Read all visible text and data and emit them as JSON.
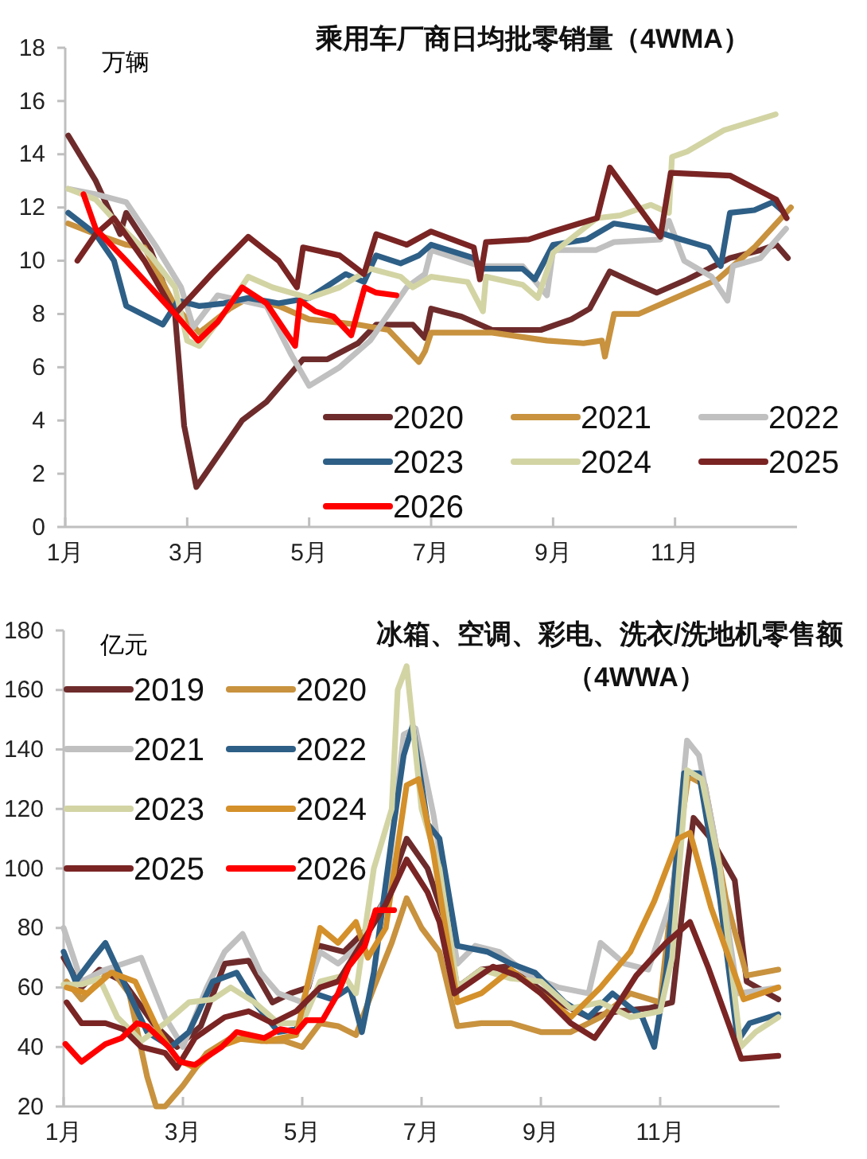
{
  "chart_data": [
    {
      "type": "line",
      "title": "乘用车厂商日均批零销量（4WMA）",
      "ylabel": "万辆",
      "xlim": [
        1,
        13
      ],
      "xticks": [
        {
          "value": 1,
          "label": "1月"
        },
        {
          "value": 3,
          "label": "3月"
        },
        {
          "value": 5,
          "label": "5月"
        },
        {
          "value": 7,
          "label": "7月"
        },
        {
          "value": 9,
          "label": "9月"
        },
        {
          "value": 11,
          "label": "11月"
        }
      ],
      "ylim": [
        0,
        18
      ],
      "yticks": [
        0,
        2,
        4,
        6,
        8,
        10,
        12,
        14,
        16,
        18
      ],
      "grid": false,
      "legend": "bottom right",
      "marker": "none",
      "line_style": "solid",
      "series": [
        {
          "name": "2020",
          "color": "#6e2b2b",
          "x": [
            1.05,
            1.5,
            1.9,
            2.0,
            2.4,
            2.8,
            2.95,
            3.15,
            3.3,
            3.6,
            3.9,
            4.3,
            4.6,
            4.9,
            5.3,
            5.8,
            6.1,
            6.7,
            6.9,
            7.0,
            7.5,
            8.0,
            8.8,
            9.3,
            9.6,
            9.93,
            10.3,
            10.7,
            11.2,
            11.9,
            12.4,
            12.66,
            12.85
          ],
          "values": [
            14.7,
            13.0,
            11.0,
            11.8,
            10.4,
            8.0,
            3.8,
            1.5,
            2.0,
            3.0,
            4.0,
            4.7,
            5.5,
            6.3,
            6.3,
            6.9,
            7.6,
            7.6,
            7.1,
            8.2,
            7.9,
            7.4,
            7.4,
            7.8,
            8.2,
            9.6,
            9.2,
            8.8,
            9.3,
            10.1,
            10.4,
            10.6,
            10.1
          ]
        },
        {
          "name": "2021",
          "color": "#c8923e",
          "x": [
            1.05,
            1.5,
            2.0,
            2.3,
            2.8,
            3.2,
            3.7,
            4.0,
            4.5,
            5.0,
            5.8,
            6.3,
            6.8,
            6.9,
            7.0,
            8.0,
            8.9,
            9.5,
            9.8,
            9.85,
            10.0,
            10.4,
            11.0,
            11.7,
            12.3,
            12.9
          ],
          "values": [
            11.4,
            11.0,
            10.6,
            10.5,
            8.3,
            7.3,
            8.2,
            8.6,
            8.3,
            7.8,
            7.6,
            7.4,
            6.2,
            6.6,
            7.3,
            7.3,
            7.0,
            6.9,
            7.0,
            6.4,
            8.0,
            8.0,
            8.6,
            9.3,
            10.5,
            12.0
          ]
        },
        {
          "name": "2022",
          "color": "#c0c0c0",
          "x": [
            1.05,
            1.5,
            2.0,
            2.5,
            2.9,
            3.1,
            3.5,
            4.3,
            4.7,
            5.0,
            5.5,
            6.0,
            6.3,
            6.6,
            6.9,
            7.0,
            7.8,
            8.5,
            8.9,
            9.0,
            9.7,
            10.0,
            10.76,
            10.9,
            11.15,
            11.6,
            11.86,
            11.95,
            12.4,
            12.82
          ],
          "values": [
            12.7,
            12.5,
            12.2,
            10.5,
            9.0,
            7.5,
            8.7,
            8.3,
            6.5,
            5.3,
            6.0,
            7.0,
            8.0,
            9.0,
            9.5,
            10.4,
            9.8,
            9.8,
            8.7,
            10.4,
            10.4,
            10.7,
            10.8,
            11.5,
            10.0,
            9.4,
            8.5,
            9.8,
            10.1,
            11.2
          ]
        },
        {
          "name": "2023",
          "color": "#2e5f86",
          "x": [
            1.05,
            1.5,
            1.8,
            2.0,
            2.6,
            2.85,
            3.2,
            3.6,
            4.0,
            4.5,
            5.0,
            5.6,
            5.9,
            6.1,
            6.5,
            6.8,
            7.0,
            7.7,
            7.85,
            8.5,
            8.7,
            9.0,
            9.55,
            10.0,
            10.55,
            11.1,
            11.55,
            11.75,
            11.9,
            12.3,
            12.6,
            12.75
          ],
          "values": [
            11.8,
            11.0,
            10.0,
            8.3,
            7.6,
            8.5,
            8.3,
            8.4,
            8.6,
            8.4,
            8.6,
            9.5,
            9.2,
            10.2,
            9.9,
            10.2,
            10.6,
            10.1,
            9.7,
            9.7,
            9.3,
            10.6,
            10.8,
            11.4,
            11.2,
            10.8,
            10.5,
            9.8,
            11.8,
            11.9,
            12.2,
            11.9
          ]
        },
        {
          "name": "2024",
          "color": "#d3d4a4",
          "x": [
            1.05,
            1.5,
            1.9,
            2.4,
            2.8,
            3.0,
            3.2,
            3.6,
            4.0,
            4.4,
            5.0,
            5.5,
            6.0,
            6.5,
            6.7,
            7.0,
            7.6,
            7.85,
            7.9,
            8.5,
            8.75,
            9.0,
            9.72,
            10.1,
            10.6,
            10.9,
            10.95,
            11.2,
            11.8,
            12.65
          ],
          "values": [
            12.7,
            12.3,
            11.3,
            10.2,
            9.0,
            7.0,
            6.8,
            8.0,
            9.4,
            9.0,
            8.6,
            9.0,
            9.7,
            9.4,
            9.0,
            9.4,
            9.2,
            8.1,
            9.4,
            9.1,
            8.6,
            10.3,
            11.6,
            11.7,
            12.1,
            11.8,
            13.9,
            14.1,
            14.9,
            15.5
          ]
        },
        {
          "name": "2025",
          "color": "#7a2424",
          "x": [
            1.2,
            1.5,
            1.8,
            2.3,
            2.8,
            3.4,
            4.0,
            4.5,
            4.8,
            4.9,
            5.5,
            5.9,
            6.1,
            6.6,
            7.0,
            7.7,
            7.8,
            7.9,
            8.6,
            9.0,
            9.72,
            9.93,
            10.76,
            10.93,
            11.9,
            12.66,
            12.83
          ],
          "values": [
            10.0,
            11.0,
            11.6,
            10.0,
            8.0,
            9.5,
            10.9,
            10.0,
            9.0,
            10.5,
            10.2,
            9.5,
            11.0,
            10.6,
            11.1,
            10.5,
            9.3,
            10.7,
            10.8,
            11.1,
            11.6,
            13.5,
            10.9,
            13.3,
            13.2,
            12.3,
            11.6
          ]
        },
        {
          "name": "2026",
          "color": "#ff0000",
          "x": [
            1.3,
            1.5,
            2.0,
            2.8,
            3.18,
            3.5,
            3.9,
            4.3,
            4.77,
            4.85,
            5.1,
            5.4,
            5.69,
            5.91,
            6.1,
            6.43
          ],
          "values": [
            12.5,
            11.2,
            10.0,
            8.0,
            7.0,
            7.7,
            9.0,
            8.4,
            6.8,
            8.5,
            8.1,
            7.9,
            7.2,
            9.0,
            8.8,
            8.7
          ]
        }
      ]
    },
    {
      "type": "line",
      "title": "冰箱、空调、彩电、洗衣/洗地机零售额（4WWA）",
      "ylabel": "亿元",
      "xlim": [
        1,
        13
      ],
      "xticks": [
        {
          "value": 1,
          "label": "1月"
        },
        {
          "value": 3,
          "label": "3月"
        },
        {
          "value": 5,
          "label": "5月"
        },
        {
          "value": 7,
          "label": "7月"
        },
        {
          "value": 9,
          "label": "9月"
        },
        {
          "value": 11,
          "label": "11月"
        }
      ],
      "ylim": [
        20,
        180
      ],
      "yticks": [
        20,
        40,
        60,
        80,
        100,
        120,
        140,
        160,
        180
      ],
      "grid": false,
      "legend": "top left",
      "marker": "none",
      "line_style": "solid",
      "series": [
        {
          "name": "2019",
          "color": "#6e2b2b",
          "x": [
            1.0,
            1.3,
            1.6,
            2.0,
            2.5,
            2.9,
            3.3,
            3.7,
            4.1,
            4.5,
            4.8,
            5.1,
            5.3,
            5.7,
            6.1,
            6.4,
            6.75,
            7.1,
            7.4,
            7.6,
            8.0,
            8.4,
            8.8,
            9.3,
            9.8,
            10.3,
            10.8,
            11.2,
            11.45,
            11.56,
            11.85,
            12.25,
            12.45,
            12.98
          ],
          "values": [
            70,
            60,
            66,
            62,
            48,
            40,
            47,
            68,
            69,
            55,
            58,
            60,
            74,
            72,
            80,
            90,
            110,
            100,
            82,
            60,
            66,
            67,
            62,
            55,
            50,
            52,
            53,
            55,
            100,
            117,
            110,
            96,
            62,
            56
          ]
        },
        {
          "name": "2020",
          "color": "#c8923e",
          "x": [
            1.05,
            1.3,
            1.8,
            2.1,
            2.4,
            2.55,
            2.7,
            3.0,
            3.4,
            3.8,
            4.3,
            4.7,
            5.0,
            5.3,
            5.6,
            5.9,
            6.2,
            6.5,
            6.75,
            7.0,
            7.3,
            7.6,
            8.0,
            8.5,
            9.0,
            9.5,
            10.0,
            10.5,
            11.0,
            11.25,
            11.47,
            11.75,
            12.1,
            12.45,
            12.98
          ],
          "values": [
            62,
            56,
            66,
            58,
            30,
            20,
            20,
            27,
            38,
            43,
            42,
            42,
            40,
            48,
            47,
            44,
            60,
            75,
            90,
            80,
            72,
            47,
            48,
            48,
            45,
            45,
            50,
            58,
            55,
            100,
            131,
            128,
            90,
            64,
            66
          ]
        },
        {
          "name": "2021",
          "color": "#c0c0c0",
          "x": [
            1.0,
            1.3,
            1.7,
            2.0,
            2.3,
            2.7,
            3.0,
            3.4,
            3.7,
            4.0,
            4.3,
            4.6,
            5.0,
            5.3,
            5.6,
            6.0,
            6.4,
            6.7,
            6.9,
            7.2,
            7.6,
            7.9,
            8.3,
            8.8,
            9.3,
            9.8,
            10.0,
            10.4,
            10.8,
            11.2,
            11.45,
            11.65,
            11.9,
            12.3,
            12.98
          ],
          "values": [
            80,
            62,
            66,
            68,
            70,
            50,
            40,
            60,
            72,
            78,
            65,
            58,
            55,
            72,
            68,
            75,
            90,
            145,
            147,
            118,
            68,
            74,
            72,
            64,
            60,
            58,
            75,
            68,
            66,
            90,
            143,
            138,
            112,
            58,
            60
          ]
        },
        {
          "name": "2022",
          "color": "#2e5f86",
          "x": [
            1.0,
            1.2,
            1.5,
            1.7,
            2.0,
            2.4,
            2.8,
            3.1,
            3.5,
            3.9,
            4.2,
            4.6,
            4.9,
            5.2,
            5.5,
            5.8,
            6.0,
            6.2,
            6.5,
            6.7,
            6.85,
            7.1,
            7.3,
            7.6,
            8.1,
            8.5,
            8.9,
            9.4,
            9.8,
            10.2,
            10.7,
            10.9,
            11.1,
            11.4,
            11.65,
            12.0,
            12.3,
            12.5,
            12.98
          ],
          "values": [
            72,
            62,
            70,
            75,
            62,
            45,
            40,
            45,
            62,
            65,
            55,
            45,
            46,
            58,
            56,
            60,
            45,
            65,
            110,
            138,
            148,
            115,
            110,
            74,
            72,
            68,
            65,
            55,
            50,
            58,
            50,
            40,
            65,
            132,
            132,
            90,
            42,
            48,
            51
          ]
        },
        {
          "name": "2023",
          "color": "#d3d4a4",
          "x": [
            1.0,
            1.3,
            1.6,
            1.9,
            2.3,
            2.7,
            3.1,
            3.5,
            3.8,
            4.2,
            4.6,
            5.0,
            5.3,
            5.7,
            5.9,
            6.2,
            6.5,
            6.6,
            6.75,
            7.0,
            7.3,
            7.6,
            8.0,
            8.5,
            9.0,
            9.5,
            10.0,
            10.5,
            11.0,
            11.2,
            11.45,
            11.7,
            12.0,
            12.35,
            12.6,
            12.98
          ],
          "values": [
            61,
            61,
            63,
            50,
            42,
            48,
            55,
            56,
            60,
            55,
            48,
            48,
            62,
            64,
            58,
            100,
            120,
            160,
            168,
            120,
            100,
            60,
            66,
            63,
            62,
            53,
            55,
            50,
            52,
            70,
            133,
            130,
            100,
            40,
            45,
            50
          ]
        },
        {
          "name": "2024",
          "color": "#d4902a",
          "x": [
            1.05,
            1.4,
            1.8,
            2.2,
            2.6,
            2.9,
            3.2,
            3.6,
            4.0,
            4.4,
            4.9,
            5.3,
            5.6,
            5.9,
            6.1,
            6.4,
            6.75,
            6.95,
            7.2,
            7.6,
            8.0,
            8.5,
            9.0,
            9.5,
            10.0,
            10.5,
            10.9,
            11.3,
            11.5,
            11.85,
            12.4,
            12.98
          ],
          "values": [
            60,
            58,
            65,
            62,
            45,
            36,
            33,
            40,
            43,
            42,
            44,
            80,
            75,
            82,
            70,
            80,
            128,
            130,
            105,
            55,
            58,
            66,
            58,
            50,
            60,
            72,
            89,
            110,
            112,
            87,
            56,
            60
          ]
        },
        {
          "name": "2025",
          "color": "#7a2424",
          "x": [
            1.05,
            1.3,
            1.7,
            2.0,
            2.3,
            2.7,
            2.9,
            3.2,
            3.7,
            4.1,
            4.5,
            4.9,
            5.3,
            5.6,
            6.0,
            6.4,
            6.75,
            7.1,
            7.3,
            7.55,
            8.2,
            8.6,
            9.0,
            9.5,
            9.9,
            10.15,
            10.6,
            11.1,
            11.5,
            11.8,
            12.36,
            12.98
          ],
          "values": [
            55,
            48,
            48,
            46,
            40,
            38,
            33,
            43,
            50,
            52,
            48,
            52,
            60,
            62,
            75,
            88,
            103,
            92,
            82,
            58,
            67,
            64,
            58,
            48,
            43,
            50,
            64,
            75,
            82,
            67,
            36,
            37
          ]
        },
        {
          "name": "2026",
          "color": "#ff0000",
          "x": [
            1.03,
            1.3,
            1.7,
            1.97,
            2.23,
            2.4,
            2.76,
            2.95,
            3.2,
            3.65,
            3.9,
            4.36,
            4.63,
            4.9,
            5.07,
            5.34,
            5.6,
            5.78,
            6.05,
            6.23,
            6.54
          ],
          "values": [
            41,
            35,
            41,
            43,
            48,
            47,
            40,
            35,
            34,
            40,
            45,
            43,
            46,
            45,
            49,
            49,
            58,
            67,
            74,
            86,
            86
          ]
        }
      ]
    }
  ]
}
